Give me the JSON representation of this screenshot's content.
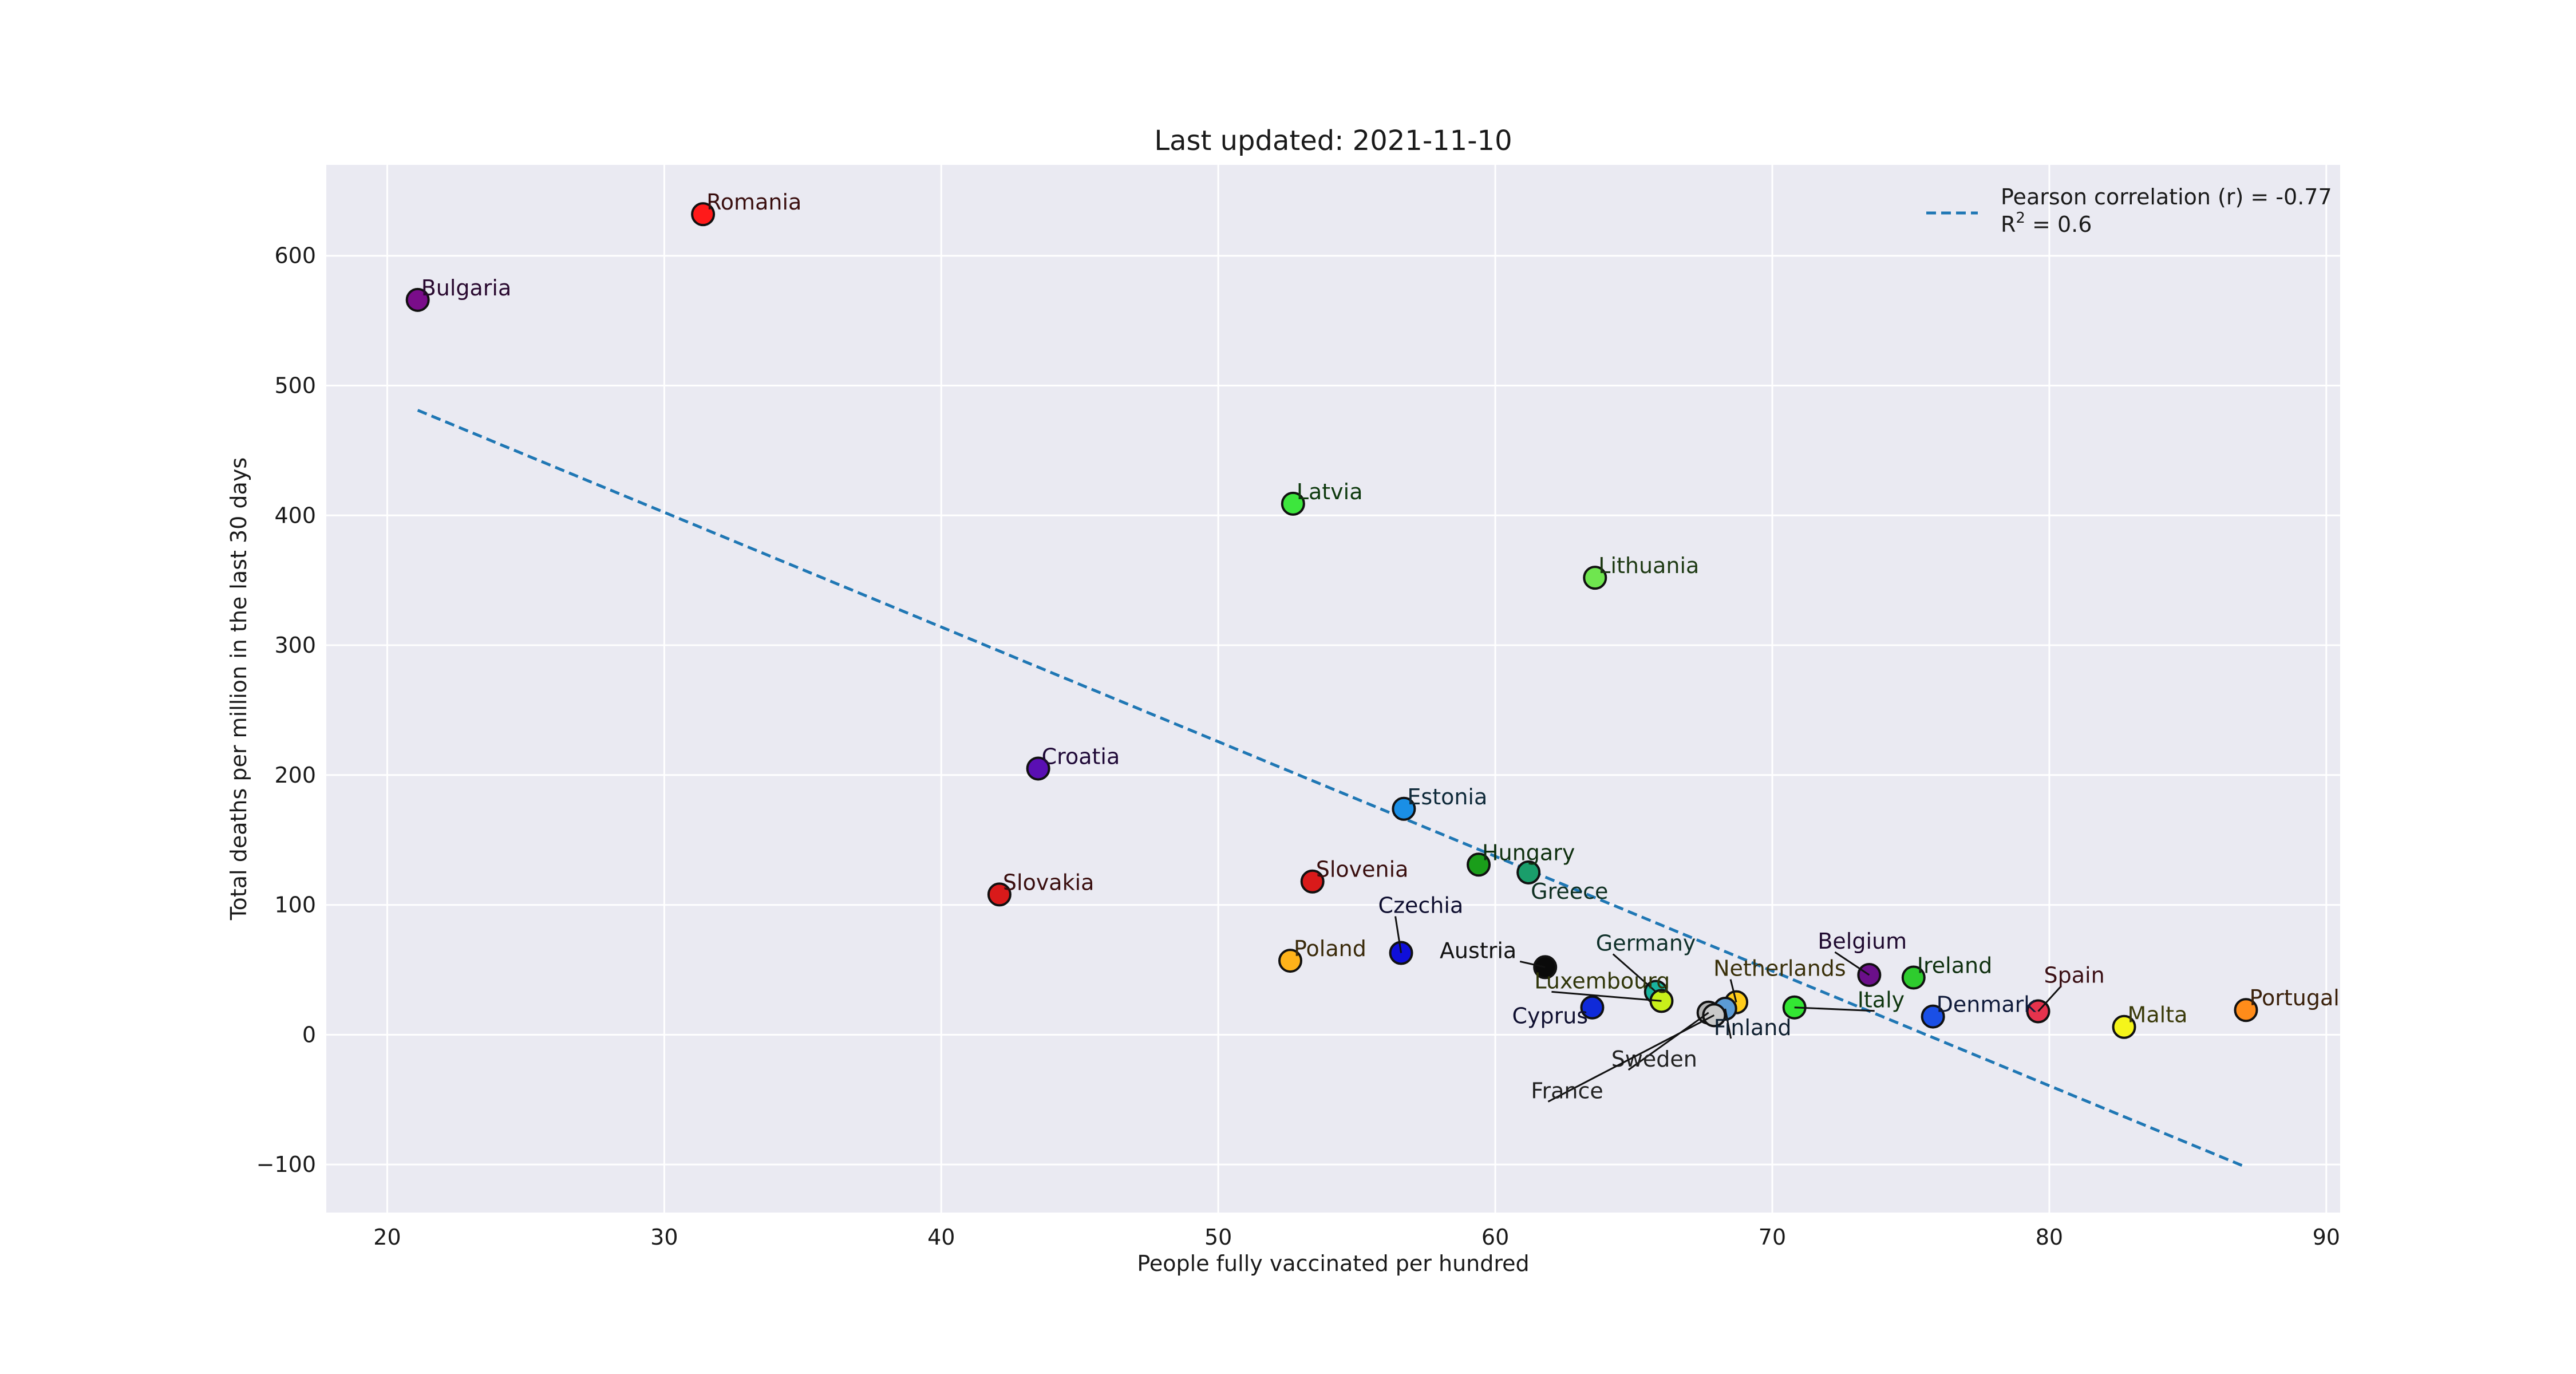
{
  "chart_data": {
    "type": "scatter",
    "title": "Last updated: 2021-11-10",
    "xlabel": "People fully vaccinated per hundred",
    "ylabel": "Total deaths per million in the last 30 days",
    "xlim": [
      17.8,
      90.5
    ],
    "ylim": [
      -137,
      670
    ],
    "xticks": [
      20,
      30,
      40,
      50,
      60,
      70,
      80,
      90
    ],
    "yticks": [
      -100,
      0,
      100,
      200,
      300,
      400,
      500,
      600
    ],
    "ytick_labels": [
      "−100",
      "0",
      "100",
      "200",
      "300",
      "400",
      "500",
      "600"
    ],
    "grid": true,
    "legend_position": "top-right",
    "legend": {
      "line_label": "Pearson correlation (r) = -0.77",
      "r2_prefix": "R",
      "r2_sup": "2",
      "r2_suffix": " = 0.6"
    },
    "trend_line": {
      "x": [
        21.1,
        87.1
      ],
      "y": [
        481,
        -102
      ]
    },
    "points": [
      {
        "label": "Romania",
        "x": 31.4,
        "y": 632,
        "color": "#ff1a1a",
        "label_color": "#3a0f0f"
      },
      {
        "label": "Bulgaria",
        "x": 21.1,
        "y": 566,
        "color": "#7a0d8a",
        "label_color": "#2a0a30"
      },
      {
        "label": "Latvia",
        "x": 52.7,
        "y": 409,
        "color": "#3de63d",
        "label_color": "#0f3a0f"
      },
      {
        "label": "Lithuania",
        "x": 63.6,
        "y": 352,
        "color": "#6fe64f",
        "label_color": "#1e3a14"
      },
      {
        "label": "Croatia",
        "x": 43.5,
        "y": 205,
        "color": "#5a0fb3",
        "label_color": "#200a38"
      },
      {
        "label": "Estonia",
        "x": 56.7,
        "y": 174,
        "color": "#1a8fe6",
        "label_color": "#0f2a3a"
      },
      {
        "label": "Hungary",
        "x": 59.4,
        "y": 131,
        "color": "#1a9e1a",
        "label_color": "#0f300f"
      },
      {
        "label": "Greece",
        "x": 61.2,
        "y": 125,
        "color": "#1a9e6b",
        "label_color": "#0f3022"
      },
      {
        "label": "Slovenia",
        "x": 53.4,
        "y": 118,
        "color": "#d91a1a",
        "label_color": "#3a0f0f"
      },
      {
        "label": "Slovakia",
        "x": 42.1,
        "y": 108,
        "color": "#d91a1a",
        "label_color": "#3a0f0f"
      },
      {
        "label": "Czechia",
        "x": 56.6,
        "y": 63,
        "color": "#0f0fd9",
        "label_color": "#0f0f30"
      },
      {
        "label": "Poland",
        "x": 52.6,
        "y": 57,
        "color": "#ffb31a",
        "label_color": "#3a2a0a"
      },
      {
        "label": "Austria",
        "x": 61.8,
        "y": 52,
        "color": "#0a0a0a",
        "label_color": "#111111"
      },
      {
        "label": "Belgium",
        "x": 73.5,
        "y": 46,
        "color": "#6b0f8a",
        "label_color": "#200a30"
      },
      {
        "label": "Ireland",
        "x": 75.1,
        "y": 44,
        "color": "#2ecc2e",
        "label_color": "#0f300f"
      },
      {
        "label": "Germany",
        "x": 65.8,
        "y": 33,
        "color": "#1ab39e",
        "label_color": "#0f302a"
      },
      {
        "label": "Luxembourg",
        "x": 66.0,
        "y": 26,
        "color": "#c8f01a",
        "label_color": "#30360a"
      },
      {
        "label": "Netherlands",
        "x": 68.7,
        "y": 25,
        "color": "#ffcc1a",
        "label_color": "#3a300a"
      },
      {
        "label": "Cyprus",
        "x": 63.5,
        "y": 21,
        "color": "#0f2ad9",
        "label_color": "#0f0f30"
      },
      {
        "label": "Italy",
        "x": 70.8,
        "y": 21,
        "color": "#33e633",
        "label_color": "#0f360f"
      },
      {
        "label": "Spain",
        "x": 79.6,
        "y": 18,
        "color": "#e6334d",
        "label_color": "#3a0f14"
      },
      {
        "label": "Portugal",
        "x": 87.1,
        "y": 19,
        "color": "#ff8c1a",
        "label_color": "#3a200a"
      },
      {
        "label": "Finland",
        "x": 68.3,
        "y": 20,
        "color": "#5b9bd5",
        "label_color": "#0f2030"
      },
      {
        "label": "Sweden",
        "x": 67.7,
        "y": 17,
        "color": "#b3b3b3",
        "label_color": "#222222"
      },
      {
        "label": "Denmark",
        "x": 75.8,
        "y": 14,
        "color": "#1a4fe6",
        "label_color": "#0f1a3a"
      },
      {
        "label": "France",
        "x": 67.9,
        "y": 15,
        "color": "#c9c9c9",
        "label_color": "#222222"
      },
      {
        "label": "Malta",
        "x": 82.7,
        "y": 6,
        "color": "#f5f51a",
        "label_color": "#3a3a0a"
      }
    ]
  }
}
